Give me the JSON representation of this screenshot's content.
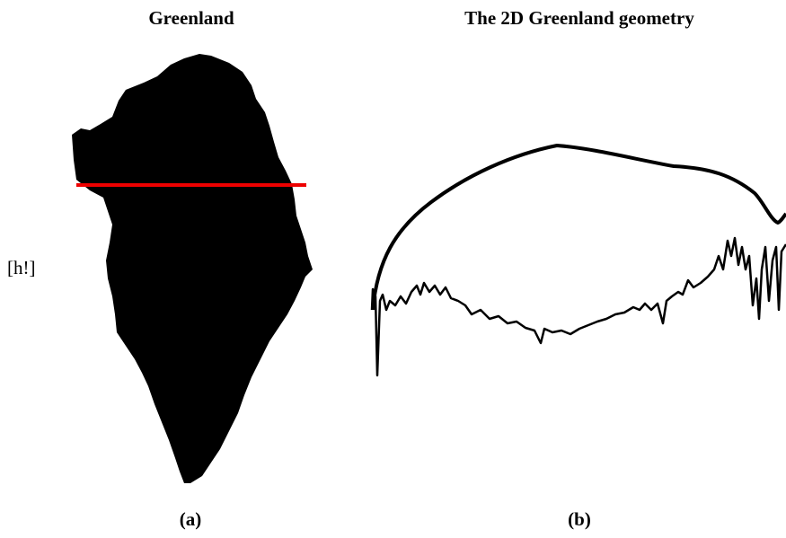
{
  "float_spec": "[h!]",
  "panels": [
    {
      "title": "Greenland",
      "caption": "(a)"
    },
    {
      "title": "The 2D Greenland geometry",
      "caption": "(b)"
    }
  ]
}
